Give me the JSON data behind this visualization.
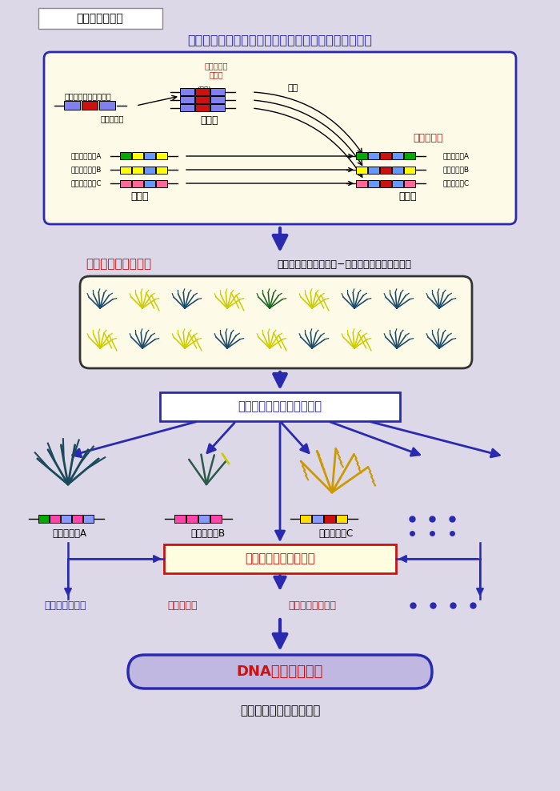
{
  "bg_color": "#ddd8e8",
  "title_box_text": "研究のイメージ",
  "section1_title": "培養によるトランスポゾンの活性化と大量遣伝子破壊",
  "section2_label_red": "ミュータントパネル",
  "section2_label_black": "（再分化イネ２万系統−遣伝子破壊イネ系統群）",
  "box3_text": "遣伝子破壊イネの形質解析",
  "box4_text": "遣伝子の生物機能解明",
  "box5_text": "DNA農業への展開",
  "bottom_text": "食糧、環境問題への貢献",
  "gene_labels": [
    "破壊遣伝子A",
    "破壊遣伝子B",
    "破壊遣伝子C"
  ],
  "outcome_labels": [
    "出穂時期の制御",
    "生育の制御",
    "病害抗抗性の制御"
  ],
  "retro_label": "レトロトランスポゾン",
  "culture_label": "培養による",
  "activation_label": "活性化",
  "transcription_label": "逆転写酵素",
  "transfer_label": "転移",
  "gene_break_label": "遣伝子破壊",
  "rice_gene_labels": [
    "イネの遣伝子A",
    "イネの遣伝子B",
    "イネの遣伝子C"
  ],
  "broken_gene_labels_right": [
    "破壊遣伝子A",
    "破壊遣伝子B",
    "破壊遣伝子C"
  ],
  "arrow_color": "#2a2ab0",
  "red_color": "#cc1111",
  "blue_color": "#2a2ab0",
  "box_outline": "#2a2ab0",
  "top_diagram_bg": "#fdfae8",
  "mutant_panel_bg": "#fdfae8"
}
